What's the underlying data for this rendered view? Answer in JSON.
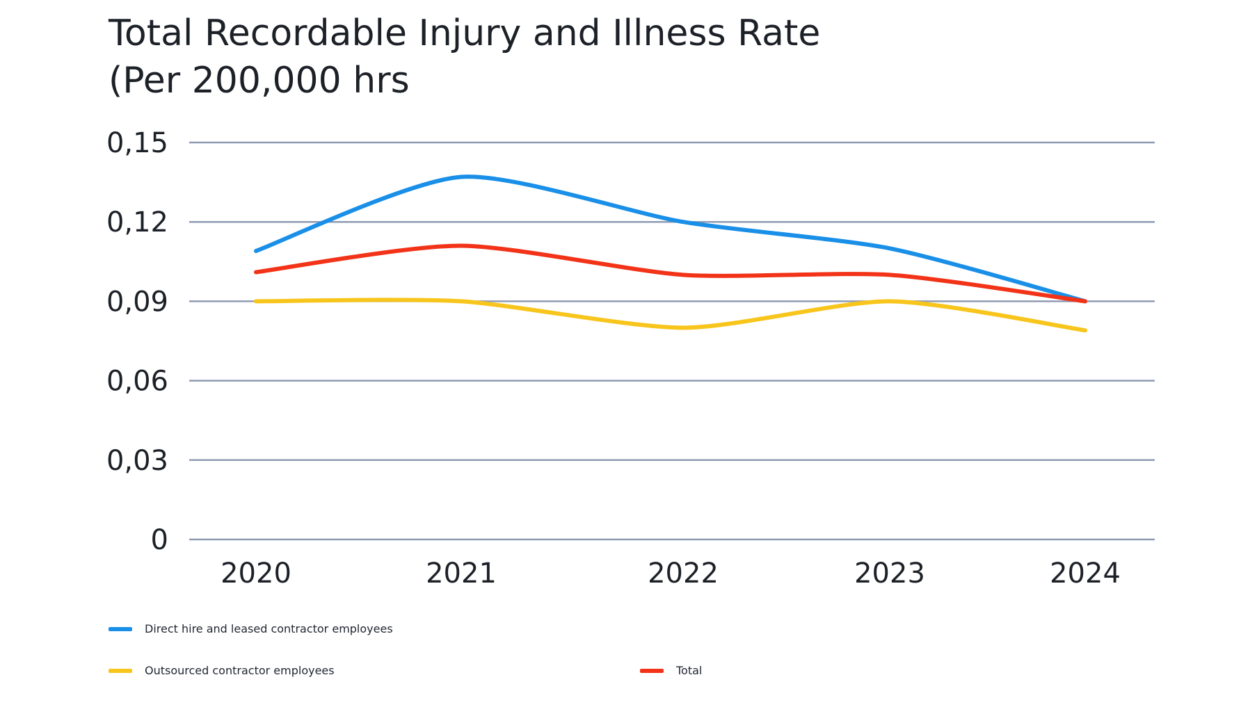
{
  "title": {
    "line1": "Total Recordable Injury and Illness Rate",
    "line2": "(Per 200,000 hrs"
  },
  "chart_data": {
    "type": "line",
    "categories": [
      "2020",
      "2021",
      "2022",
      "2023",
      "2024"
    ],
    "series": [
      {
        "name": "Direct hire and leased contractor employees",
        "color": "#1a8fe8",
        "values": [
          0.109,
          0.137,
          0.12,
          0.11,
          0.09
        ]
      },
      {
        "name": "Outsourced contractor employees",
        "color": "#f8c51c",
        "values": [
          0.09,
          0.09,
          0.08,
          0.09,
          0.079
        ]
      },
      {
        "name": "Total",
        "color": "#f23318",
        "values": [
          0.101,
          0.111,
          0.1,
          0.1,
          0.09
        ]
      }
    ],
    "y_ticks": [
      "0",
      "0,03",
      "0,06",
      "0,09",
      "0,12",
      "0,15"
    ],
    "y_tick_values": [
      0,
      0.03,
      0.06,
      0.09,
      0.12,
      0.15
    ],
    "ylim": [
      0,
      0.15
    ],
    "grid": true,
    "grid_color": "#8f9bb3",
    "legend_position": "bottom-left"
  }
}
